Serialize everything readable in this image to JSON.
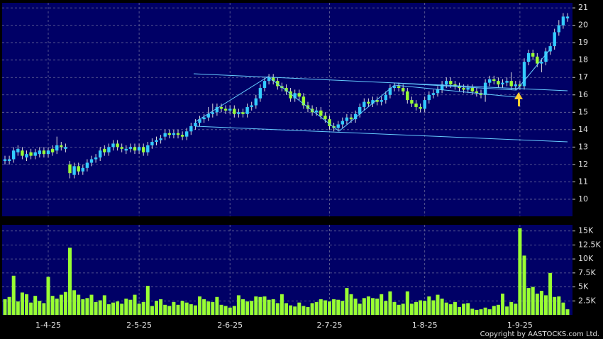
{
  "chart_data": [
    {
      "type": "candlestick",
      "categories": [
        null,
        null,
        null,
        null,
        null,
        null,
        null,
        null,
        null,
        null,
        "1-4-25",
        null,
        null,
        null,
        null,
        null,
        null,
        null,
        null,
        null,
        null,
        null,
        null,
        null,
        null,
        null,
        null,
        null,
        null,
        null,
        null,
        "2-5-25",
        null,
        null,
        null,
        null,
        null,
        null,
        null,
        null,
        null,
        null,
        null,
        null,
        null,
        null,
        null,
        null,
        null,
        null,
        null,
        null,
        "2-6-25",
        null,
        null,
        null,
        null,
        null,
        null,
        null,
        null,
        null,
        null,
        null,
        null,
        null,
        null,
        null,
        null,
        null,
        null,
        null,
        null,
        null,
        null,
        "2-7-25",
        null,
        null,
        null,
        null,
        null,
        null,
        null,
        null,
        null,
        null,
        null,
        null,
        null,
        null,
        null,
        null,
        null,
        null,
        null,
        null,
        null,
        "1-8-25",
        null,
        null,
        null,
        null,
        null,
        null,
        null,
        null,
        null,
        null,
        null,
        null,
        null,
        null,
        null,
        null,
        null,
        null,
        null,
        null,
        null,
        "1-9-25",
        null,
        null,
        null,
        null,
        null,
        null,
        null,
        null,
        null,
        null,
        null
      ],
      "open": [
        12.2,
        12.2,
        12.3,
        12.7,
        12.8,
        12.4,
        12.7,
        12.5,
        12.6,
        12.8,
        12.6,
        12.9,
        12.8,
        13.1,
        12.9,
        12.0,
        11.4,
        11.9,
        11.6,
        11.8,
        12.1,
        12.3,
        12.4,
        12.9,
        12.7,
        13.0,
        13.2,
        13.0,
        12.8,
        12.9,
        13.0,
        12.8,
        13.0,
        12.7,
        13.1,
        13.3,
        13.4,
        13.6,
        13.8,
        13.7,
        13.8,
        13.7,
        13.6,
        13.9,
        14.2,
        14.4,
        14.6,
        14.7,
        14.9,
        15.0,
        15.3,
        15.2,
        15.1,
        15.2,
        14.9,
        15.0,
        14.9,
        15.3,
        15.4,
        15.8,
        16.4,
        16.8,
        17.0,
        16.8,
        16.5,
        16.4,
        16.2,
        15.8,
        16.1,
        15.9,
        15.4,
        15.2,
        15.0,
        15.1,
        14.8,
        14.6,
        14.2,
        14.1,
        14.3,
        14.5,
        14.7,
        14.6,
        14.9,
        15.3,
        15.6,
        15.5,
        15.7,
        15.6,
        15.7,
        16.0,
        16.4,
        16.5,
        16.4,
        16.2,
        15.7,
        15.5,
        15.3,
        15.2,
        15.7,
        16.0,
        16.1,
        16.3,
        16.6,
        16.8,
        16.6,
        16.5,
        16.4,
        16.3,
        16.4,
        16.2,
        16.1,
        16.0,
        16.7,
        16.9,
        16.8,
        16.6,
        16.7,
        16.8,
        16.5,
        16.6,
        16.5,
        17.9,
        18.4,
        18.2,
        17.8,
        17.9,
        18.5,
        18.8,
        19.6,
        20.0,
        20.4
      ],
      "high": [
        12.5,
        12.5,
        13.0,
        13.1,
        13.0,
        12.8,
        12.9,
        12.9,
        13.0,
        13.0,
        13.0,
        13.1,
        13.6,
        13.3,
        13.2,
        12.2,
        12.1,
        12.1,
        12.0,
        12.3,
        12.5,
        12.6,
        13.0,
        13.1,
        13.2,
        13.4,
        13.4,
        13.2,
        13.1,
        13.2,
        13.2,
        13.2,
        13.2,
        13.3,
        13.5,
        13.6,
        13.7,
        14.0,
        14.0,
        14.0,
        14.0,
        13.9,
        14.1,
        14.4,
        14.6,
        14.8,
        14.9,
        15.3,
        15.5,
        15.5,
        15.5,
        15.4,
        15.4,
        15.4,
        15.2,
        15.2,
        15.5,
        15.6,
        16.0,
        16.6,
        17.0,
        17.2,
        17.2,
        17.0,
        16.7,
        16.6,
        16.4,
        16.3,
        16.3,
        16.1,
        15.6,
        15.4,
        15.3,
        15.3,
        15.0,
        14.8,
        14.4,
        14.5,
        14.7,
        14.9,
        14.9,
        15.1,
        15.5,
        15.8,
        15.8,
        15.9,
        15.9,
        15.9,
        16.2,
        16.6,
        16.7,
        16.7,
        16.6,
        16.4,
        15.9,
        15.7,
        15.5,
        15.9,
        16.2,
        16.3,
        16.5,
        16.8,
        17.0,
        17.0,
        16.8,
        16.7,
        16.6,
        16.6,
        16.6,
        16.4,
        16.3,
        16.9,
        17.1,
        17.1,
        17.0,
        16.9,
        17.0,
        17.3,
        16.8,
        16.8,
        18.1,
        18.6,
        18.6,
        18.4,
        18.1,
        18.7,
        19.0,
        19.8,
        20.3,
        20.7,
        20.7
      ],
      "low": [
        12.0,
        12.0,
        12.1,
        12.5,
        12.3,
        12.2,
        12.3,
        12.3,
        12.4,
        12.4,
        12.4,
        12.5,
        12.6,
        12.8,
        12.7,
        11.2,
        11.2,
        11.4,
        11.4,
        11.6,
        11.9,
        12.1,
        12.2,
        12.5,
        12.5,
        12.8,
        12.8,
        12.7,
        12.6,
        12.7,
        12.6,
        12.6,
        12.5,
        12.5,
        12.9,
        13.1,
        13.2,
        13.4,
        13.5,
        13.5,
        13.5,
        13.4,
        13.4,
        13.7,
        14.0,
        14.2,
        14.4,
        14.5,
        14.7,
        14.8,
        15.0,
        14.9,
        14.9,
        14.7,
        14.7,
        14.7,
        14.7,
        15.1,
        15.2,
        15.6,
        16.2,
        16.6,
        16.6,
        16.3,
        16.2,
        16.0,
        15.6,
        15.6,
        15.7,
        15.2,
        15.0,
        14.8,
        14.8,
        14.6,
        14.4,
        14.0,
        13.9,
        13.9,
        14.1,
        14.3,
        14.4,
        14.4,
        14.7,
        15.1,
        15.3,
        15.3,
        15.4,
        15.4,
        15.5,
        15.8,
        16.2,
        16.2,
        16.0,
        15.5,
        15.3,
        15.1,
        15.0,
        15.0,
        15.5,
        15.8,
        15.9,
        16.1,
        16.4,
        16.4,
        16.3,
        16.2,
        16.1,
        16.1,
        16.0,
        15.9,
        15.8,
        15.6,
        16.5,
        16.6,
        16.4,
        16.4,
        16.5,
        16.3,
        16.3,
        16.3,
        16.3,
        17.7,
        18.0,
        17.6,
        17.3,
        17.7,
        18.3,
        18.6,
        19.4,
        19.8,
        20.2
      ],
      "close": [
        12.3,
        12.3,
        12.8,
        12.9,
        12.5,
        12.6,
        12.5,
        12.7,
        12.8,
        12.6,
        12.8,
        12.7,
        13.1,
        13.0,
        13.0,
        11.5,
        11.9,
        11.6,
        11.8,
        12.1,
        12.3,
        12.4,
        12.8,
        12.7,
        13.0,
        13.2,
        13.0,
        12.9,
        12.9,
        13.0,
        12.8,
        13.0,
        12.7,
        13.1,
        13.3,
        13.4,
        13.5,
        13.8,
        13.7,
        13.8,
        13.7,
        13.6,
        13.9,
        14.2,
        14.4,
        14.6,
        14.7,
        14.9,
        15.0,
        15.3,
        15.2,
        15.1,
        15.2,
        14.9,
        15.0,
        14.9,
        15.3,
        15.4,
        15.8,
        16.4,
        16.8,
        17.0,
        16.8,
        16.5,
        16.4,
        16.2,
        15.8,
        16.1,
        15.9,
        15.4,
        15.2,
        15.0,
        15.1,
        14.8,
        14.6,
        14.2,
        14.1,
        14.3,
        14.5,
        14.7,
        14.6,
        14.9,
        15.3,
        15.6,
        15.5,
        15.7,
        15.6,
        15.7,
        16.0,
        16.4,
        16.5,
        16.4,
        16.2,
        15.7,
        15.5,
        15.3,
        15.2,
        15.7,
        16.0,
        16.1,
        16.3,
        16.6,
        16.8,
        16.6,
        16.5,
        16.4,
        16.3,
        16.4,
        16.2,
        16.1,
        16.0,
        16.7,
        16.9,
        16.8,
        16.6,
        16.7,
        16.8,
        16.5,
        16.6,
        16.5,
        17.9,
        18.4,
        18.2,
        17.8,
        17.9,
        18.5,
        18.8,
        19.6,
        20.0,
        20.5,
        20.5
      ],
      "up_color": "#33ccff",
      "down_color": "#99ff33",
      "ylim": [
        9.02,
        21.29
      ],
      "yticks": [
        10,
        11,
        12,
        13,
        14,
        15,
        16,
        17,
        18,
        19,
        20,
        21
      ],
      "grid": true
    },
    {
      "type": "bar",
      "values": [
        2800,
        3200,
        7000,
        2400,
        4000,
        3700,
        2200,
        3400,
        2500,
        2100,
        6800,
        3400,
        2900,
        3600,
        4100,
        12000,
        4400,
        3600,
        2800,
        3000,
        3600,
        2300,
        2600,
        3500,
        1900,
        2200,
        2400,
        2000,
        2900,
        2700,
        3600,
        2000,
        2300,
        5200,
        1600,
        2500,
        2800,
        1800,
        1600,
        2300,
        1800,
        2500,
        2200,
        1900,
        1700,
        3300,
        2800,
        2400,
        2300,
        3200,
        1800,
        1600,
        1300,
        1600,
        3500,
        2800,
        2400,
        2500,
        3300,
        3200,
        3300,
        2700,
        2800,
        2100,
        3700,
        2100,
        1700,
        1500,
        2200,
        1600,
        1400,
        2100,
        2300,
        2800,
        2600,
        2400,
        2800,
        2700,
        2500,
        4800,
        3700,
        2900,
        2000,
        3000,
        3300,
        3000,
        2900,
        3700,
        2500,
        4200,
        2300,
        1800,
        2000,
        4200,
        2000,
        2300,
        2600,
        2500,
        3300,
        2600,
        3600,
        2900,
        2200,
        1900,
        2300,
        1400,
        2000,
        2100,
        1100,
        900,
        1000,
        1300,
        1000,
        1600,
        1800,
        3800,
        1500,
        2300,
        2000,
        15500,
        10600,
        4800,
        5000,
        3800,
        4300,
        3500,
        7500,
        3200,
        3300,
        2200,
        1000
      ],
      "color": "#99ff33",
      "ylim": [
        0,
        16100
      ],
      "yticks": [
        {
          "value": 2500,
          "label": "2.5K"
        },
        {
          "value": 5000,
          "label": "5K"
        },
        {
          "value": 7500,
          "label": "7.5K"
        },
        {
          "value": 10000,
          "label": "10K"
        },
        {
          "value": 12500,
          "label": "12.5K"
        },
        {
          "value": 15000,
          "label": "15K"
        }
      ],
      "grid": true
    }
  ],
  "copyright": "Copyright by AASTOCKS.com Ltd."
}
